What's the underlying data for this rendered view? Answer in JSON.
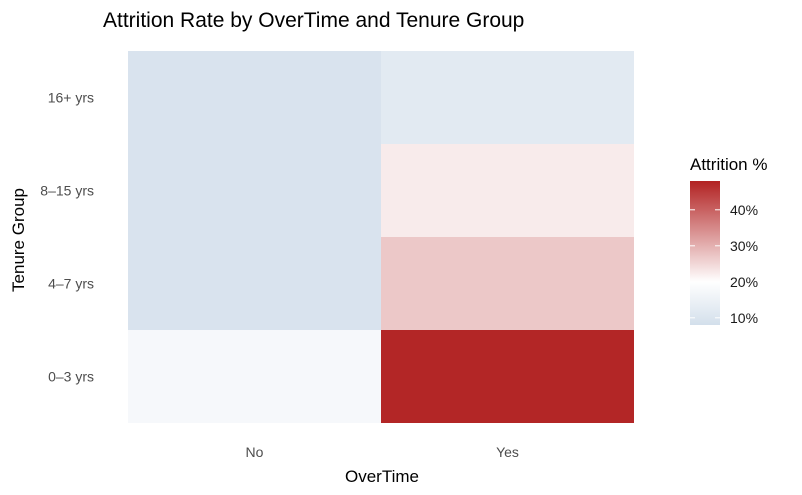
{
  "chart_data": {
    "type": "heatmap",
    "title": "Attrition Rate by OverTime and Tenure Group",
    "xlabel": "OverTime",
    "ylabel": "Tenure Group",
    "x_categories": [
      "No",
      "Yes"
    ],
    "y_categories": [
      "0–3 yrs",
      "4–7 yrs",
      "8–15 yrs",
      "16+ yrs"
    ],
    "values_percent": {
      "No": [
        17.5,
        9.5,
        9.5,
        9.5
      ],
      "Yes": [
        47.5,
        27,
        22.5,
        12
      ]
    },
    "legend": {
      "title": "Attrition %",
      "position": "right",
      "ticks": [
        10,
        20,
        30,
        40
      ],
      "tick_labels": [
        "10%",
        "20%",
        "30%",
        "40%"
      ],
      "range": [
        8,
        48
      ]
    },
    "colors": {
      "low": "#d3dfeb",
      "mid": "#ffffff",
      "high": "#b22222",
      "mid_value": 20
    }
  }
}
